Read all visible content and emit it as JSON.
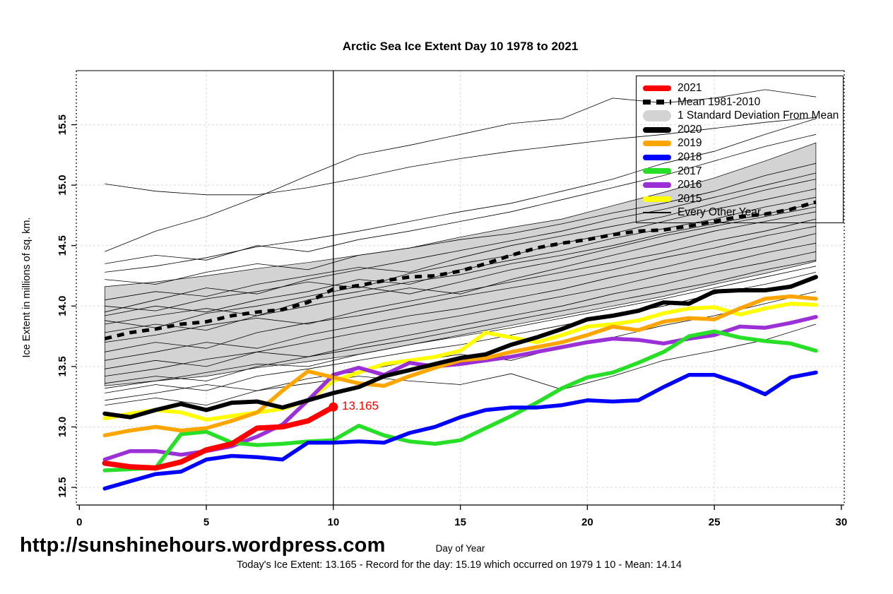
{
  "title": "Arctic Sea Ice Extent Day 10 1978 to 2021",
  "annotations": {
    "today_value_label": "13.165",
    "url": "http://sunshinehours.wordpress.com",
    "caption": "Today's Ice Extent: 13.165  - Record for the day: 15.19 which occurred on 1979 1 10  - Mean: 14.14"
  },
  "legend": {
    "items": [
      {
        "label": "2021",
        "color": "#ff0000",
        "kind": "thick"
      },
      {
        "label": "Mean 1981-2010",
        "color": "#000000",
        "kind": "dash"
      },
      {
        "label": "1 Standard Deviation From Mean",
        "color": "#d3d3d3",
        "kind": "band"
      },
      {
        "label": "2020",
        "color": "#000000",
        "kind": "thick"
      },
      {
        "label": "2019",
        "color": "#ffa500",
        "kind": "thick"
      },
      {
        "label": "2018",
        "color": "#0000ff",
        "kind": "thick"
      },
      {
        "label": "2017",
        "color": "#28df28",
        "kind": "thick"
      },
      {
        "label": "2016",
        "color": "#9b30d6",
        "kind": "thick"
      },
      {
        "label": "2015",
        "color": "#ffff00",
        "kind": "thick"
      },
      {
        "label": "Every Other Year",
        "color": "#000000",
        "kind": "thin"
      }
    ]
  },
  "chart_data": {
    "type": "line",
    "title": "Arctic Sea Ice Extent Day 10 1978 to 2021",
    "xlabel": "Day of Year",
    "ylabel": "Ice Extent in millions of sq. km.",
    "xlim": [
      -0.12,
      30.12
    ],
    "ylim": [
      12.35,
      15.95
    ],
    "grid": true,
    "legend_position": "top-right",
    "x_ticks": [
      0,
      5,
      10,
      15,
      20,
      25,
      30
    ],
    "x_tick_labels": [
      "0",
      "5",
      "10",
      "15",
      "20",
      "25",
      "30"
    ],
    "y_ticks": [
      12.5,
      13.0,
      13.5,
      14.0,
      14.5,
      15.0,
      15.5
    ],
    "y_tick_labels": [
      "12.5",
      "13.0",
      "13.5",
      "14.0",
      "14.5",
      "15.0",
      "15.5"
    ],
    "vline_day": 10,
    "today_point": {
      "day": 10,
      "value": 13.165,
      "color": "#ff0000"
    },
    "record_note": {
      "value": 15.19,
      "year": "1979",
      "day": 10
    },
    "mean_note": 14.14,
    "days": [
      1,
      2,
      3,
      4,
      5,
      6,
      7,
      8,
      9,
      10,
      11,
      12,
      13,
      14,
      15,
      16,
      17,
      18,
      19,
      20,
      21,
      22,
      23,
      24,
      25,
      26,
      27,
      28,
      29
    ],
    "series": [
      {
        "name": "2015",
        "color": "#ffff00",
        "width": 5.5,
        "values": [
          13.07,
          13.11,
          13.14,
          13.12,
          13.06,
          13.09,
          13.12,
          13.15,
          13.22,
          13.38,
          13.45,
          13.52,
          13.55,
          13.58,
          13.63,
          13.78,
          13.74,
          13.7,
          13.76,
          13.83,
          13.85,
          13.88,
          13.94,
          13.98,
          13.99,
          13.93,
          13.98,
          14.02,
          14.01
        ]
      },
      {
        "name": "2016",
        "color": "#9b30d6",
        "width": 5.5,
        "values": [
          12.73,
          12.8,
          12.8,
          12.77,
          12.8,
          12.84,
          12.92,
          13.02,
          13.22,
          13.43,
          13.49,
          13.43,
          13.53,
          13.5,
          13.52,
          13.55,
          13.58,
          13.62,
          13.66,
          13.7,
          13.73,
          13.72,
          13.69,
          13.73,
          13.76,
          13.83,
          13.82,
          13.86,
          13.91
        ]
      },
      {
        "name": "2017",
        "color": "#28df28",
        "width": 5.5,
        "values": [
          12.64,
          12.65,
          12.66,
          12.94,
          12.96,
          12.87,
          12.85,
          12.86,
          12.88,
          12.89,
          13.01,
          12.93,
          12.88,
          12.86,
          12.89,
          12.99,
          13.09,
          13.2,
          13.32,
          13.41,
          13.45,
          13.53,
          13.62,
          13.75,
          13.79,
          13.74,
          13.71,
          13.69,
          13.63
        ]
      },
      {
        "name": "2018",
        "color": "#0000ff",
        "width": 5.5,
        "values": [
          12.49,
          12.55,
          12.61,
          12.63,
          12.73,
          12.76,
          12.75,
          12.73,
          12.87,
          12.87,
          12.88,
          12.87,
          12.95,
          13.0,
          13.08,
          13.14,
          13.16,
          13.16,
          13.18,
          13.22,
          13.21,
          13.22,
          13.33,
          13.43,
          13.43,
          13.36,
          13.27,
          13.41,
          13.45
        ]
      },
      {
        "name": "2019",
        "color": "#ffa500",
        "width": 5.5,
        "values": [
          12.93,
          12.97,
          13.0,
          12.97,
          12.99,
          13.05,
          13.12,
          13.3,
          13.46,
          13.41,
          13.36,
          13.34,
          13.42,
          13.49,
          13.55,
          13.57,
          13.62,
          13.66,
          13.7,
          13.76,
          13.83,
          13.8,
          13.87,
          13.9,
          13.89,
          13.98,
          14.06,
          14.08,
          14.06
        ]
      },
      {
        "name": "2020",
        "color": "#000000",
        "width": 6,
        "values": [
          13.11,
          13.08,
          13.14,
          13.19,
          13.14,
          13.2,
          13.21,
          13.16,
          13.22,
          13.28,
          13.33,
          13.42,
          13.47,
          13.52,
          13.57,
          13.6,
          13.68,
          13.74,
          13.81,
          13.89,
          13.92,
          13.96,
          14.03,
          14.02,
          14.12,
          14.13,
          14.13,
          14.16,
          14.24
        ]
      },
      {
        "name": "2021",
        "color": "#ff0000",
        "width": 7.5,
        "values": [
          12.7,
          12.67,
          12.66,
          12.71,
          12.81,
          12.86,
          12.99,
          13.0,
          13.05,
          13.165
        ]
      }
    ],
    "mean_series": {
      "name": "Mean 1981-2010",
      "values": [
        13.73,
        13.78,
        13.81,
        13.85,
        13.87,
        13.92,
        13.95,
        13.97,
        14.03,
        14.14,
        14.17,
        14.21,
        14.24,
        14.25,
        14.29,
        14.35,
        14.42,
        14.48,
        14.52,
        14.55,
        14.59,
        14.62,
        14.63,
        14.66,
        14.7,
        14.74,
        14.76,
        14.8,
        14.86
      ]
    },
    "band": {
      "name": "1 Standard Deviation From Mean",
      "fill": "#d3d3d3",
      "days": [
        1,
        3,
        5,
        7,
        9,
        11,
        13,
        15,
        17,
        19,
        21,
        23,
        25,
        27,
        29
      ],
      "upper": [
        14.16,
        14.2,
        14.25,
        14.31,
        14.36,
        14.42,
        14.48,
        14.57,
        14.65,
        14.72,
        14.83,
        14.94,
        15.06,
        15.2,
        15.35
      ],
      "lower": [
        13.34,
        13.38,
        13.42,
        13.49,
        13.54,
        13.6,
        13.68,
        13.76,
        13.84,
        13.92,
        14.0,
        14.08,
        14.18,
        14.27,
        14.37
      ]
    },
    "background_years": {
      "name": "Every Other Year",
      "color": "#000000",
      "days": [
        1,
        3,
        5,
        7,
        9,
        11,
        13,
        15,
        17,
        19,
        21,
        23,
        25,
        27,
        29
      ],
      "lines": [
        [
          14.45,
          14.62,
          14.74,
          14.9,
          15.08,
          15.25,
          15.33,
          15.42,
          15.51,
          15.55,
          15.72,
          15.68,
          15.72,
          15.79,
          15.73
        ],
        [
          15.01,
          14.95,
          14.92,
          14.92,
          14.98,
          15.06,
          15.15,
          15.22,
          15.28,
          15.33,
          15.38,
          15.42,
          15.47,
          15.52,
          15.56
        ],
        [
          14.28,
          14.33,
          14.4,
          14.49,
          14.55,
          14.62,
          14.7,
          14.78,
          14.85,
          14.95,
          15.05,
          15.18,
          15.28,
          15.42,
          15.55
        ],
        [
          14.22,
          14.18,
          14.28,
          14.35,
          14.3,
          14.42,
          14.48,
          14.55,
          14.6,
          14.68,
          14.77,
          14.85,
          14.95,
          15.08,
          15.18
        ],
        [
          14.35,
          14.42,
          14.38,
          14.5,
          14.45,
          14.55,
          14.62,
          14.7,
          14.78,
          14.88,
          14.98,
          15.08,
          15.2,
          15.32,
          15.42
        ],
        [
          14.05,
          14.12,
          14.08,
          14.18,
          14.25,
          14.32,
          14.28,
          14.4,
          14.5,
          14.58,
          14.66,
          14.74,
          14.85,
          14.96,
          15.05
        ],
        [
          14.0,
          13.96,
          14.06,
          14.12,
          14.2,
          14.15,
          14.27,
          14.35,
          14.42,
          14.52,
          14.6,
          14.7,
          14.8,
          14.88,
          14.97
        ],
        [
          13.95,
          14.05,
          14.15,
          14.1,
          14.22,
          14.3,
          14.38,
          14.46,
          14.54,
          14.62,
          14.72,
          14.8,
          14.9,
          15.0,
          15.1
        ],
        [
          13.92,
          14.0,
          13.95,
          14.05,
          14.12,
          14.22,
          14.18,
          14.3,
          14.38,
          14.46,
          14.56,
          14.64,
          14.72,
          14.82,
          14.9
        ],
        [
          13.88,
          13.82,
          13.94,
          14.0,
          14.08,
          14.16,
          14.1,
          14.2,
          14.3,
          14.38,
          14.48,
          14.58,
          14.66,
          14.74,
          14.82
        ],
        [
          13.85,
          13.92,
          13.98,
          13.92,
          14.05,
          14.12,
          14.2,
          14.26,
          14.35,
          14.42,
          14.5,
          14.6,
          14.68,
          14.76,
          14.85
        ],
        [
          13.78,
          13.85,
          13.8,
          13.92,
          14.0,
          14.08,
          14.15,
          14.1,
          14.22,
          14.32,
          14.42,
          14.52,
          14.62,
          14.7,
          14.78
        ],
        [
          13.7,
          13.76,
          13.84,
          13.9,
          13.85,
          13.96,
          14.04,
          14.12,
          14.2,
          14.28,
          14.36,
          14.44,
          14.54,
          14.62,
          14.72
        ],
        [
          13.62,
          13.7,
          13.65,
          13.78,
          13.86,
          13.92,
          14.0,
          14.08,
          14.15,
          14.22,
          14.3,
          14.4,
          14.48,
          14.58,
          14.66
        ],
        [
          13.55,
          13.62,
          13.7,
          13.65,
          13.76,
          13.84,
          13.92,
          13.98,
          14.06,
          14.14,
          14.24,
          14.32,
          14.42,
          14.5,
          14.6
        ],
        [
          13.48,
          13.55,
          13.5,
          13.62,
          13.7,
          13.78,
          13.85,
          13.92,
          14.0,
          14.08,
          14.16,
          14.26,
          14.34,
          14.44,
          14.52
        ],
        [
          13.42,
          13.48,
          13.56,
          13.62,
          13.58,
          13.68,
          13.76,
          13.84,
          13.92,
          14.0,
          14.1,
          14.18,
          14.28,
          14.36,
          14.45
        ],
        [
          13.36,
          13.42,
          13.38,
          13.5,
          13.58,
          13.65,
          13.72,
          13.8,
          13.88,
          13.96,
          14.04,
          14.12,
          14.2,
          14.3,
          14.38
        ],
        [
          13.32,
          13.38,
          13.45,
          13.52,
          13.5,
          13.6,
          13.68,
          13.75,
          13.82,
          13.9,
          13.98,
          14.06,
          14.15,
          14.24,
          14.33
        ],
        [
          13.28,
          13.35,
          13.3,
          13.42,
          13.48,
          13.55,
          13.62,
          13.68,
          13.76,
          13.84,
          13.92,
          14.0,
          14.1,
          14.18,
          14.28
        ],
        [
          13.22,
          13.28,
          13.35,
          13.3,
          13.4,
          13.46,
          13.54,
          13.6,
          13.55,
          13.66,
          13.74,
          13.84,
          13.92,
          14.02,
          14.12
        ],
        [
          13.18,
          13.24,
          13.18,
          13.3,
          13.36,
          13.42,
          13.38,
          13.35,
          13.44,
          13.31,
          13.42,
          13.55,
          13.63,
          13.72,
          13.85
        ]
      ]
    }
  }
}
